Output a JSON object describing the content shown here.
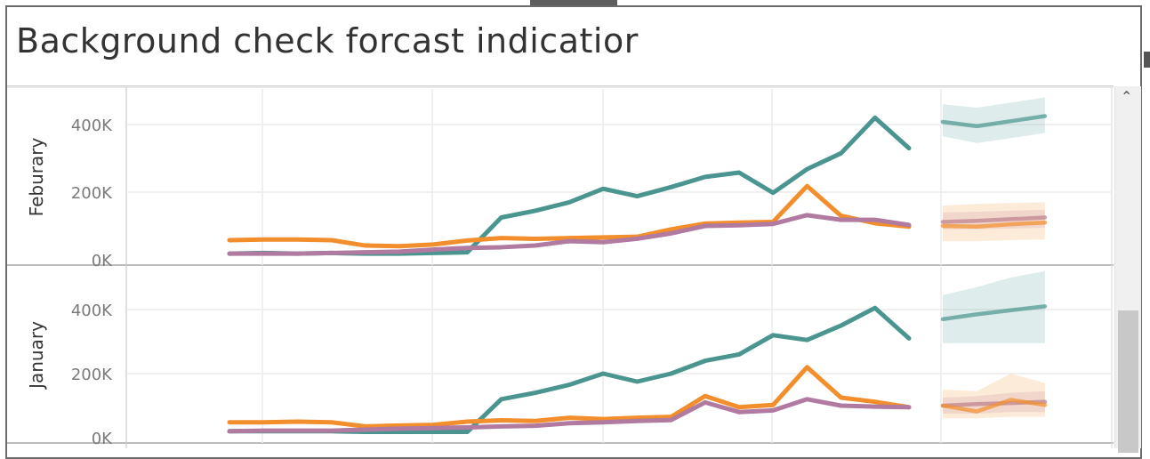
{
  "title": "Background check forcast indicatior",
  "colors": {
    "teal": "#4a958f",
    "orange": "#f28e2b",
    "purple": "#b07aa1",
    "grid": "#ececec",
    "axis": "#c0c0c0"
  },
  "chart_data": [
    {
      "type": "line",
      "row_label": "Feburary",
      "yticks": [
        "400K",
        "200K",
        "0K"
      ],
      "ytick_values": [
        400000,
        200000,
        0
      ],
      "ylim": [
        0,
        450000
      ],
      "x": [
        0,
        1,
        2,
        3,
        4,
        5,
        6,
        7,
        8,
        9,
        10,
        11,
        12,
        13,
        14,
        15,
        16,
        17,
        18,
        19,
        20
      ],
      "series": [
        {
          "name": "teal",
          "color": "#4a958f",
          "values": [
            18000,
            20000,
            18000,
            20000,
            18000,
            18000,
            20000,
            22000,
            125000,
            145000,
            170000,
            210000,
            188000,
            215000,
            245000,
            258000,
            198000,
            268000,
            315000,
            420000,
            330000
          ]
        },
        {
          "name": "orange",
          "color": "#f28e2b",
          "values": [
            58000,
            60000,
            60000,
            58000,
            42000,
            40000,
            45000,
            57000,
            64000,
            62000,
            64000,
            66000,
            68000,
            90000,
            107000,
            110000,
            112000,
            218000,
            130000,
            108000,
            98000
          ]
        },
        {
          "name": "purple",
          "color": "#b07aa1",
          "values": [
            18000,
            18000,
            18000,
            20000,
            22000,
            24000,
            30000,
            35000,
            37000,
            42000,
            55000,
            52000,
            62000,
            78000,
            100000,
            102000,
            106000,
            132000,
            118000,
            118000,
            103000
          ]
        }
      ],
      "forecast": {
        "x": [
          0,
          1,
          2,
          3
        ],
        "series": [
          {
            "name": "teal",
            "color": "#4a958f",
            "values": [
              408000,
              395000,
              410000,
              425000
            ],
            "lower": [
              365000,
              345000,
              360000,
              375000
            ],
            "upper": [
              460000,
              450000,
              465000,
              480000
            ]
          },
          {
            "name": "purple",
            "color": "#b07aa1",
            "values": [
              112000,
              115000,
              120000,
              125000
            ],
            "lower": [
              90000,
              90000,
              92000,
              95000
            ],
            "upper": [
              140000,
              142000,
              145000,
              148000
            ]
          },
          {
            "name": "orange",
            "color": "#f28e2b",
            "values": [
              100000,
              98000,
              105000,
              110000
            ],
            "lower": [
              55000,
              55000,
              58000,
              60000
            ],
            "upper": [
              160000,
              165000,
              168000,
              170000
            ]
          }
        ]
      }
    },
    {
      "type": "line",
      "row_label": "January",
      "yticks": [
        "400K",
        "200K",
        "0K"
      ],
      "ytick_values": [
        400000,
        200000,
        0
      ],
      "ylim": [
        0,
        450000
      ],
      "x": [
        0,
        1,
        2,
        3,
        4,
        5,
        6,
        7,
        8,
        9,
        10,
        11,
        12,
        13,
        14,
        15,
        16,
        17,
        18,
        19,
        20
      ],
      "series": [
        {
          "name": "teal",
          "color": "#4a958f",
          "values": [
            20000,
            20000,
            20000,
            20000,
            18000,
            18000,
            18000,
            18000,
            120000,
            140000,
            165000,
            200000,
            175000,
            200000,
            240000,
            260000,
            320000,
            305000,
            350000,
            405000,
            310000
          ]
        },
        {
          "name": "orange",
          "color": "#f28e2b",
          "values": [
            48000,
            48000,
            50000,
            48000,
            35000,
            38000,
            40000,
            50000,
            54000,
            52000,
            62000,
            58000,
            62000,
            65000,
            130000,
            95000,
            102000,
            220000,
            125000,
            112000,
            95000
          ]
        },
        {
          "name": "purple",
          "color": "#b07aa1",
          "values": [
            20000,
            22000,
            22000,
            22000,
            25000,
            28000,
            30000,
            32000,
            35000,
            37000,
            45000,
            48000,
            52000,
            55000,
            110000,
            80000,
            85000,
            120000,
            100000,
            97000,
            95000
          ]
        }
      ],
      "forecast": {
        "x": [
          0,
          1,
          2,
          3
        ],
        "series": [
          {
            "name": "teal",
            "color": "#4a958f",
            "values": [
              370000,
              385000,
              398000,
              410000
            ],
            "lower": [
              295000,
              295000,
              295000,
              295000
            ],
            "upper": [
              445000,
              470000,
              500000,
              520000
            ]
          },
          {
            "name": "purple",
            "color": "#b07aa1",
            "values": [
              100000,
              105000,
              108000,
              112000
            ],
            "lower": [
              75000,
              75000,
              80000,
              80000
            ],
            "upper": [
              125000,
              130000,
              140000,
              145000
            ]
          },
          {
            "name": "orange",
            "color": "#f28e2b",
            "values": [
              100000,
              82000,
              118000,
              102000
            ],
            "lower": [
              60000,
              60000,
              65000,
              65000
            ],
            "upper": [
              150000,
              145000,
              200000,
              170000
            ]
          }
        ]
      }
    }
  ]
}
